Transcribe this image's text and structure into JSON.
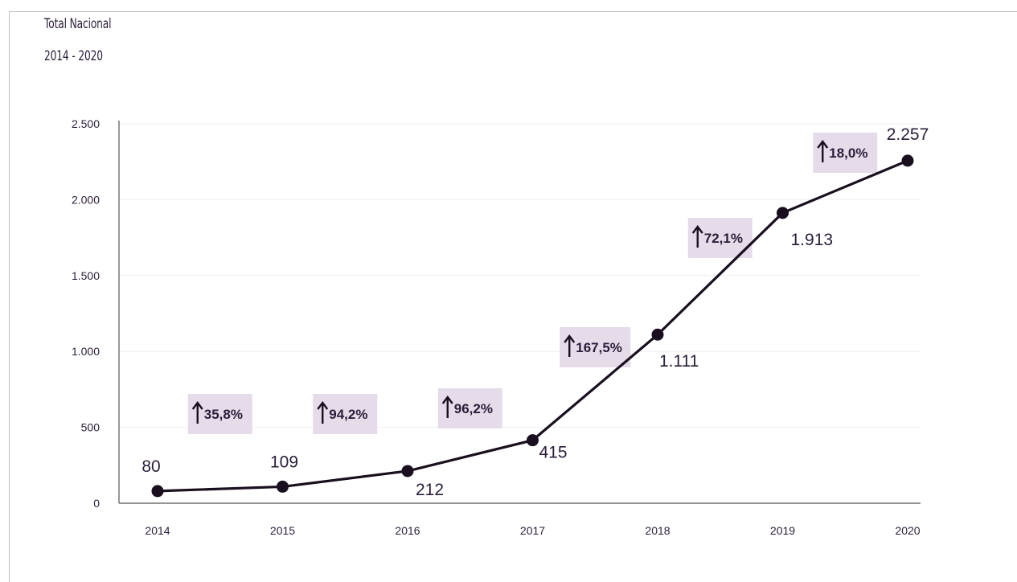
{
  "title": "Total Nacional",
  "subtitle": "2014 - 2020",
  "colors": {
    "line": "#1a0f1f",
    "marker": "#1a0f1f",
    "badge": "#e6dbe9",
    "grid": "#f1eef2",
    "axis": "#555555",
    "text": "#2b1d3a"
  },
  "chart_data": {
    "type": "line",
    "title": "Total Nacional",
    "subtitle": "2014 - 2020",
    "xlabel": "",
    "ylabel": "",
    "categories": [
      "2014",
      "2015",
      "2016",
      "2017",
      "2018",
      "2019",
      "2020"
    ],
    "values": [
      80,
      109,
      212,
      415,
      1111,
      1913,
      2257
    ],
    "value_labels": [
      "80",
      "109",
      "212",
      "415",
      "1.111",
      "1.913",
      "2.257"
    ],
    "ylim": [
      0,
      2500
    ],
    "yticks": [
      0,
      500,
      1000,
      1500,
      2000,
      2500
    ],
    "ytick_labels": [
      "0",
      "500",
      "1.000",
      "1.500",
      "2.000",
      "2.500"
    ],
    "grid": true,
    "growth": [
      {
        "label": "35,8%"
      },
      {
        "label": "94,2%"
      },
      {
        "label": "96,2%"
      },
      {
        "label": "167,5%"
      },
      {
        "label": "72,1%"
      },
      {
        "label": "18,0%"
      }
    ]
  }
}
